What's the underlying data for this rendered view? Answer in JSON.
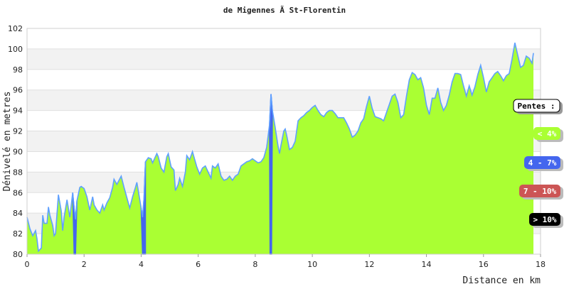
{
  "chart_data": {
    "type": "area",
    "title": "de Migennes Ã  St-Florentin",
    "xlabel": "Distance en km",
    "ylabel": "Dénivelé en metres",
    "xlim": [
      0,
      18
    ],
    "ylim": [
      80,
      102
    ],
    "x_ticks": [
      "0",
      "2",
      "4",
      "6",
      "8",
      "10",
      "12",
      "14",
      "16",
      "18"
    ],
    "y_ticks": [
      "80",
      "82",
      "84",
      "86",
      "88",
      "90",
      "92",
      "94",
      "96",
      "98",
      "100",
      "102"
    ],
    "fill_color": "#aaff33",
    "line_color": "#5fa0ff",
    "band_color": "#f2f2f2",
    "legend_title": "Pentes :",
    "legend": [
      {
        "label": "< 4%",
        "color": "#aaff33",
        "text_color": "#ffffff"
      },
      {
        "label": "4 - 7%",
        "color": "#4466ee",
        "text_color": "#ffffff"
      },
      {
        "label": "7 - 10%",
        "color": "#cc5555",
        "text_color": "#ffffff"
      },
      {
        "label": "> 10%",
        "color": "#000000",
        "text_color": "#ffffff"
      }
    ],
    "steep_segments": [
      {
        "from": 1.65,
        "to": 1.7,
        "color": "#4466ee"
      },
      {
        "from": 4.05,
        "to": 4.15,
        "color": "#4466ee"
      },
      {
        "from": 8.52,
        "to": 8.57,
        "color": "#4466ee"
      }
    ],
    "profile": [
      [
        0.0,
        83.6
      ],
      [
        0.1,
        82.5
      ],
      [
        0.2,
        81.8
      ],
      [
        0.3,
        82.3
      ],
      [
        0.35,
        81.5
      ],
      [
        0.4,
        80.3
      ],
      [
        0.5,
        80.6
      ],
      [
        0.55,
        83.8
      ],
      [
        0.6,
        83.0
      ],
      [
        0.7,
        83.0
      ],
      [
        0.75,
        84.6
      ],
      [
        0.8,
        83.8
      ],
      [
        0.9,
        82.8
      ],
      [
        0.95,
        81.8
      ],
      [
        1.0,
        82.0
      ],
      [
        1.1,
        85.8
      ],
      [
        1.2,
        84.2
      ],
      [
        1.25,
        82.3
      ],
      [
        1.3,
        83.6
      ],
      [
        1.4,
        85.3
      ],
      [
        1.5,
        83.6
      ],
      [
        1.6,
        86.0
      ],
      [
        1.65,
        84.5
      ],
      [
        1.7,
        83.4
      ],
      [
        1.75,
        85.2
      ],
      [
        1.85,
        86.5
      ],
      [
        1.9,
        86.6
      ],
      [
        2.0,
        86.4
      ],
      [
        2.1,
        85.6
      ],
      [
        2.2,
        84.3
      ],
      [
        2.3,
        85.6
      ],
      [
        2.35,
        84.8
      ],
      [
        2.45,
        84.3
      ],
      [
        2.55,
        84.0
      ],
      [
        2.65,
        84.8
      ],
      [
        2.7,
        84.3
      ],
      [
        2.8,
        85.0
      ],
      [
        2.9,
        85.5
      ],
      [
        3.0,
        86.5
      ],
      [
        3.05,
        87.3
      ],
      [
        3.15,
        86.8
      ],
      [
        3.3,
        87.6
      ],
      [
        3.4,
        86.5
      ],
      [
        3.5,
        85.5
      ],
      [
        3.6,
        84.5
      ],
      [
        3.7,
        85.6
      ],
      [
        3.8,
        86.5
      ],
      [
        3.85,
        87.0
      ],
      [
        3.9,
        86.2
      ],
      [
        4.0,
        84.5
      ],
      [
        4.05,
        83.6
      ],
      [
        4.1,
        85.5
      ],
      [
        4.15,
        89.0
      ],
      [
        4.25,
        89.4
      ],
      [
        4.35,
        89.3
      ],
      [
        4.4,
        88.9
      ],
      [
        4.5,
        89.5
      ],
      [
        4.55,
        89.8
      ],
      [
        4.6,
        89.5
      ],
      [
        4.7,
        88.4
      ],
      [
        4.8,
        88.0
      ],
      [
        4.9,
        89.5
      ],
      [
        4.95,
        89.8
      ],
      [
        5.05,
        88.5
      ],
      [
        5.15,
        88.2
      ],
      [
        5.2,
        86.2
      ],
      [
        5.3,
        86.8
      ],
      [
        5.35,
        87.4
      ],
      [
        5.45,
        86.6
      ],
      [
        5.55,
        88.0
      ],
      [
        5.6,
        89.6
      ],
      [
        5.7,
        89.2
      ],
      [
        5.8,
        90.0
      ],
      [
        5.85,
        89.5
      ],
      [
        5.95,
        88.5
      ],
      [
        6.05,
        87.8
      ],
      [
        6.15,
        88.4
      ],
      [
        6.25,
        88.6
      ],
      [
        6.35,
        88.0
      ],
      [
        6.45,
        87.4
      ],
      [
        6.5,
        88.6
      ],
      [
        6.6,
        88.4
      ],
      [
        6.7,
        88.8
      ],
      [
        6.8,
        87.6
      ],
      [
        6.9,
        87.2
      ],
      [
        7.0,
        87.3
      ],
      [
        7.1,
        87.6
      ],
      [
        7.2,
        87.2
      ],
      [
        7.3,
        87.6
      ],
      [
        7.4,
        87.8
      ],
      [
        7.5,
        88.6
      ],
      [
        7.6,
        88.8
      ],
      [
        7.7,
        89.0
      ],
      [
        7.8,
        89.1
      ],
      [
        7.9,
        89.3
      ],
      [
        8.0,
        89.1
      ],
      [
        8.1,
        88.9
      ],
      [
        8.2,
        89.0
      ],
      [
        8.3,
        89.4
      ],
      [
        8.4,
        90.4
      ],
      [
        8.5,
        92.6
      ],
      [
        8.55,
        95.6
      ],
      [
        8.6,
        94.0
      ],
      [
        8.7,
        92.3
      ],
      [
        8.8,
        90.5
      ],
      [
        8.85,
        89.8
      ],
      [
        8.9,
        90.6
      ],
      [
        9.0,
        92.0
      ],
      [
        9.05,
        92.2
      ],
      [
        9.1,
        91.6
      ],
      [
        9.2,
        90.2
      ],
      [
        9.3,
        90.4
      ],
      [
        9.4,
        91.0
      ],
      [
        9.5,
        93.0
      ],
      [
        9.6,
        93.3
      ],
      [
        9.7,
        93.5
      ],
      [
        9.8,
        93.8
      ],
      [
        9.9,
        94.0
      ],
      [
        10.0,
        94.3
      ],
      [
        10.1,
        94.5
      ],
      [
        10.2,
        94.0
      ],
      [
        10.3,
        93.6
      ],
      [
        10.4,
        93.4
      ],
      [
        10.5,
        93.8
      ],
      [
        10.6,
        94.0
      ],
      [
        10.7,
        94.0
      ],
      [
        10.8,
        93.7
      ],
      [
        10.9,
        93.3
      ],
      [
        11.0,
        93.3
      ],
      [
        11.1,
        93.3
      ],
      [
        11.2,
        92.8
      ],
      [
        11.3,
        92.2
      ],
      [
        11.4,
        91.4
      ],
      [
        11.5,
        91.6
      ],
      [
        11.6,
        92.0
      ],
      [
        11.7,
        92.8
      ],
      [
        11.8,
        93.2
      ],
      [
        11.9,
        94.4
      ],
      [
        12.0,
        95.4
      ],
      [
        12.1,
        94.2
      ],
      [
        12.2,
        93.4
      ],
      [
        12.3,
        93.3
      ],
      [
        12.4,
        93.2
      ],
      [
        12.5,
        93.0
      ],
      [
        12.6,
        93.8
      ],
      [
        12.7,
        94.6
      ],
      [
        12.8,
        95.4
      ],
      [
        12.9,
        95.6
      ],
      [
        13.0,
        94.8
      ],
      [
        13.1,
        93.3
      ],
      [
        13.2,
        93.6
      ],
      [
        13.3,
        95.4
      ],
      [
        13.4,
        97.0
      ],
      [
        13.5,
        97.7
      ],
      [
        13.6,
        97.5
      ],
      [
        13.7,
        97.0
      ],
      [
        13.8,
        97.2
      ],
      [
        13.9,
        96.2
      ],
      [
        14.0,
        94.5
      ],
      [
        14.1,
        93.6
      ],
      [
        14.2,
        95.2
      ],
      [
        14.3,
        95.2
      ],
      [
        14.4,
        96.2
      ],
      [
        14.5,
        94.8
      ],
      [
        14.6,
        94.0
      ],
      [
        14.7,
        94.5
      ],
      [
        14.8,
        95.5
      ],
      [
        14.9,
        96.8
      ],
      [
        15.0,
        97.6
      ],
      [
        15.1,
        97.6
      ],
      [
        15.2,
        97.5
      ],
      [
        15.3,
        96.4
      ],
      [
        15.4,
        95.4
      ],
      [
        15.5,
        96.4
      ],
      [
        15.6,
        95.5
      ],
      [
        15.7,
        96.3
      ],
      [
        15.8,
        97.5
      ],
      [
        15.9,
        98.4
      ],
      [
        16.0,
        97.2
      ],
      [
        16.1,
        95.8
      ],
      [
        16.2,
        96.8
      ],
      [
        16.3,
        97.2
      ],
      [
        16.4,
        97.6
      ],
      [
        16.5,
        97.8
      ],
      [
        16.6,
        97.4
      ],
      [
        16.7,
        96.9
      ],
      [
        16.8,
        97.4
      ],
      [
        16.9,
        97.6
      ],
      [
        17.0,
        99.0
      ],
      [
        17.1,
        100.6
      ],
      [
        17.2,
        99.4
      ],
      [
        17.3,
        98.2
      ],
      [
        17.4,
        98.4
      ],
      [
        17.5,
        99.3
      ],
      [
        17.6,
        99.1
      ],
      [
        17.7,
        98.6
      ],
      [
        17.75,
        99.6
      ]
    ]
  }
}
